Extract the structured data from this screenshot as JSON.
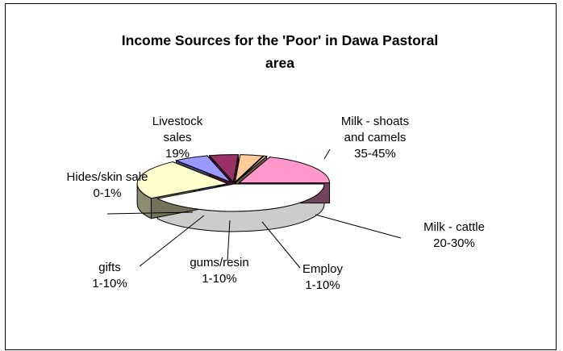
{
  "chart_data": {
    "type": "pie",
    "style": "3d-exploded-pie",
    "title_lines": [
      "Income Sources for the 'Poor' in Dawa Pastoral",
      "area"
    ],
    "slices": [
      {
        "label_lines": [
          "Milk - shoats",
          "and camels"
        ],
        "pct_label": "35-45%",
        "value": 40,
        "color": "#FFFFFF"
      },
      {
        "label_lines": [
          "Milk - cattle"
        ],
        "pct_label": "20-30%",
        "value": 23,
        "color": "#FFFFCC"
      },
      {
        "label_lines": [
          "Employ"
        ],
        "pct_label": "1-10%",
        "value": 6,
        "color": "#9999FF"
      },
      {
        "label_lines": [
          "gums/resin"
        ],
        "pct_label": "1-10%",
        "value": 5,
        "color": "#993366"
      },
      {
        "label_lines": [
          "gifts"
        ],
        "pct_label": "1-10%",
        "value": 4,
        "color": "#FFCC99"
      },
      {
        "label_lines": [
          "Hides/skin sale"
        ],
        "pct_label": "0-1%",
        "value": 0.5,
        "color": "#FFCC99"
      },
      {
        "label_lines": [
          "Livestock",
          "sales"
        ],
        "pct_label": "19%",
        "value": 19,
        "color": "#FF99CC"
      }
    ],
    "start_angle_deg": 0,
    "direction": "clockwise",
    "legend": "none"
  }
}
